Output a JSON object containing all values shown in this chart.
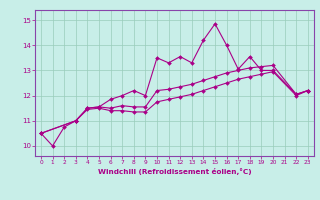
{
  "xlabel": "Windchill (Refroidissement éolien,°C)",
  "bg_color": "#c8eee8",
  "line_color": "#aa0088",
  "grid_color": "#99ccbb",
  "spine_color": "#8844aa",
  "xlim": [
    -0.5,
    23.5
  ],
  "ylim": [
    9.6,
    15.4
  ],
  "xticks": [
    0,
    1,
    2,
    3,
    4,
    5,
    6,
    7,
    8,
    9,
    10,
    11,
    12,
    13,
    14,
    15,
    16,
    17,
    18,
    19,
    20,
    21,
    22,
    23
  ],
  "yticks": [
    10,
    11,
    12,
    13,
    14,
    15
  ],
  "line1_x": [
    0,
    1,
    2,
    3,
    4,
    5,
    6,
    7,
    8,
    9,
    10,
    11,
    12,
    13,
    14,
    15,
    16,
    17,
    18,
    19,
    20,
    22,
    23
  ],
  "line1_y": [
    10.5,
    10.0,
    10.75,
    11.0,
    11.5,
    11.55,
    11.85,
    12.0,
    12.2,
    12.0,
    13.5,
    13.3,
    13.55,
    13.3,
    14.2,
    14.85,
    14.0,
    13.05,
    13.55,
    13.0,
    13.0,
    12.05,
    12.2
  ],
  "line2_x": [
    0,
    3,
    4,
    5,
    6,
    7,
    8,
    9,
    10,
    11,
    12,
    13,
    14,
    15,
    16,
    17,
    18,
    19,
    20,
    22,
    23
  ],
  "line2_y": [
    10.5,
    11.0,
    11.5,
    11.55,
    11.5,
    11.6,
    11.55,
    11.55,
    12.2,
    12.25,
    12.35,
    12.45,
    12.6,
    12.75,
    12.9,
    13.0,
    13.1,
    13.15,
    13.2,
    12.05,
    12.2
  ],
  "line3_x": [
    0,
    3,
    4,
    5,
    6,
    7,
    8,
    9,
    10,
    11,
    12,
    13,
    14,
    15,
    16,
    17,
    18,
    19,
    20,
    22,
    23
  ],
  "line3_y": [
    10.5,
    11.0,
    11.45,
    11.5,
    11.4,
    11.4,
    11.35,
    11.35,
    11.75,
    11.85,
    11.95,
    12.05,
    12.2,
    12.35,
    12.5,
    12.65,
    12.75,
    12.85,
    12.95,
    12.0,
    12.2
  ]
}
